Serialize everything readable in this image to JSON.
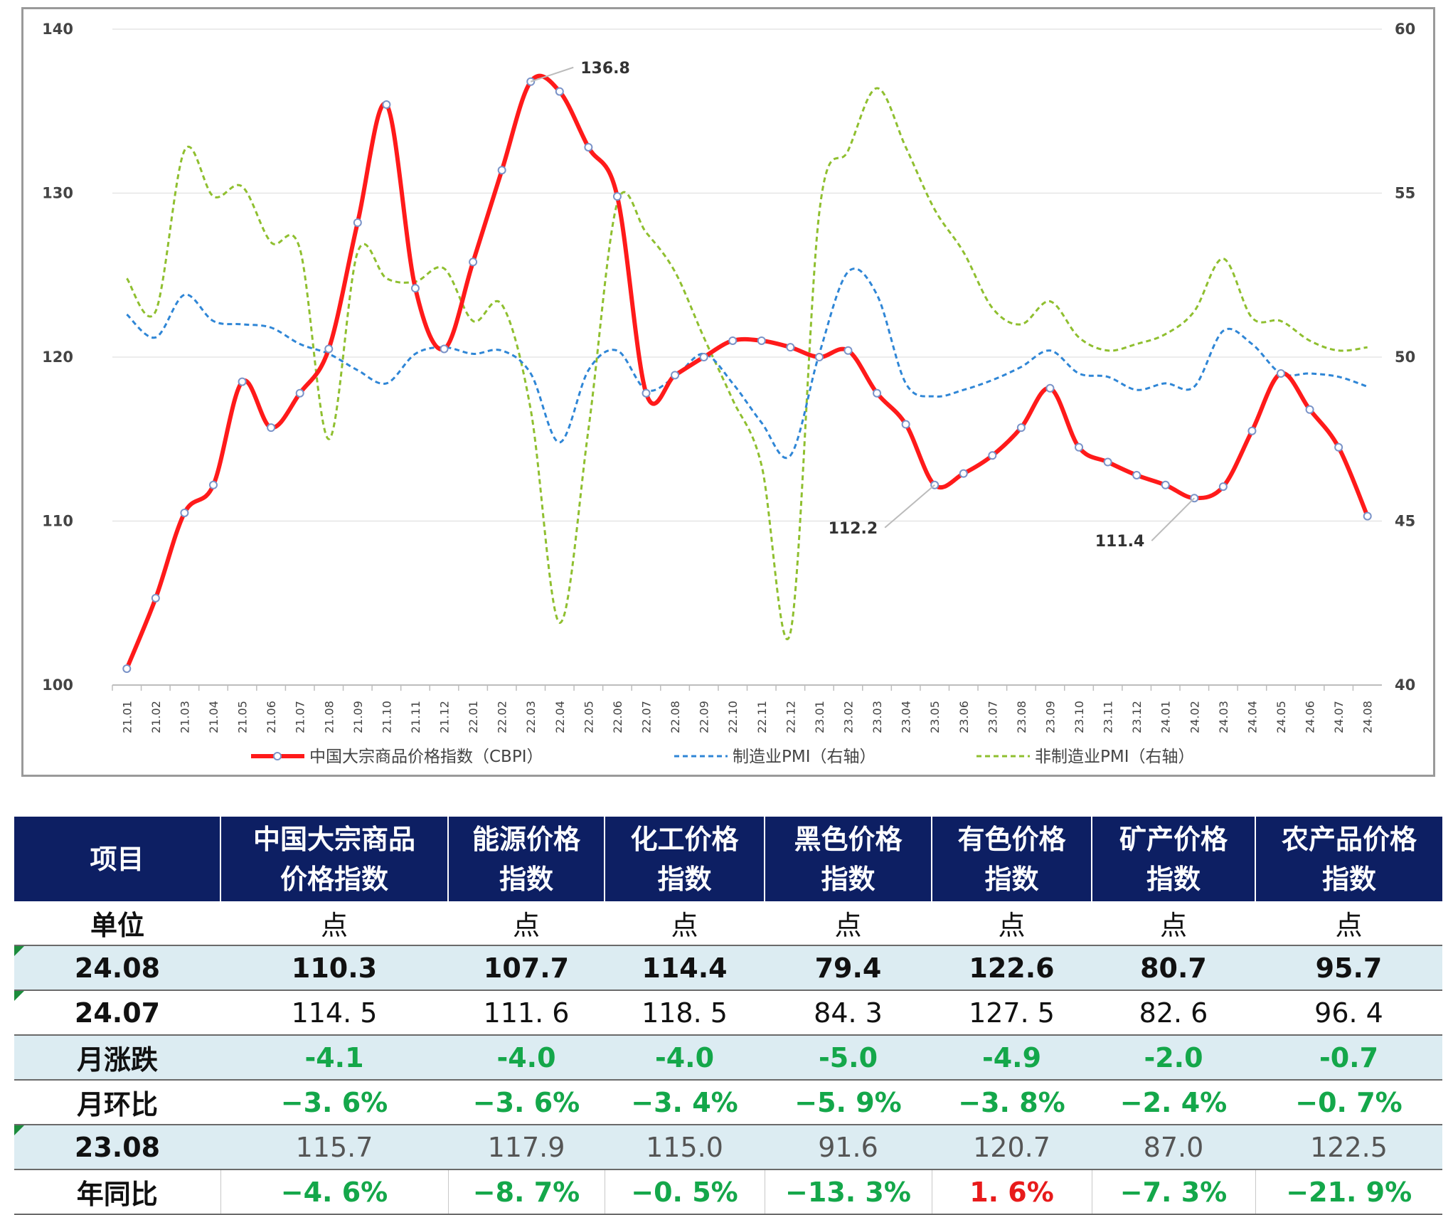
{
  "chart_data": {
    "type": "line",
    "x": [
      "21.01",
      "21.02",
      "21.03",
      "21.04",
      "21.05",
      "21.06",
      "21.07",
      "21.08",
      "21.09",
      "21.10",
      "21.11",
      "21.12",
      "22.01",
      "22.02",
      "22.03",
      "22.04",
      "22.05",
      "22.06",
      "22.07",
      "22.08",
      "22.09",
      "22.10",
      "22.11",
      "22.12",
      "23.01",
      "23.02",
      "23.03",
      "23.04",
      "23.05",
      "23.06",
      "23.07",
      "23.08",
      "23.09",
      "23.10",
      "23.11",
      "23.12",
      "24.01",
      "24.02",
      "24.03",
      "24.04",
      "24.05",
      "24.06",
      "24.07",
      "24.08"
    ],
    "left_axis": {
      "ylim": [
        100,
        140
      ],
      "ticks": [
        "100",
        "110",
        "120",
        "130",
        "140"
      ]
    },
    "right_axis": {
      "ylim": [
        40,
        60
      ],
      "ticks": [
        "40",
        "45",
        "50",
        "55",
        "60"
      ]
    },
    "series": [
      {
        "name": "中国大宗商品价格指数（CBPI）",
        "axis": "left",
        "style": "solid",
        "color": "#ff1a1a",
        "values": [
          101.0,
          105.3,
          110.5,
          112.2,
          118.5,
          115.7,
          117.8,
          120.5,
          128.2,
          135.4,
          124.2,
          120.5,
          125.8,
          131.4,
          136.8,
          136.2,
          132.8,
          129.8,
          117.8,
          118.9,
          120.0,
          121.0,
          121.0,
          120.6,
          120.0,
          120.4,
          117.8,
          115.9,
          112.2,
          112.9,
          114.0,
          115.7,
          118.1,
          114.5,
          113.6,
          112.8,
          112.2,
          111.4,
          112.1,
          115.5,
          119.0,
          116.8,
          114.5,
          110.3
        ]
      },
      {
        "name": "制造业PMI（右轴）",
        "axis": "right",
        "style": "dashed",
        "color": "#2f86d6",
        "values": [
          51.3,
          50.6,
          51.9,
          51.1,
          51.0,
          50.9,
          50.4,
          50.1,
          49.6,
          49.2,
          50.1,
          50.3,
          50.1,
          50.2,
          49.5,
          47.4,
          49.6,
          50.2,
          49.0,
          49.4,
          50.1,
          49.2,
          48.0,
          47.0,
          50.1,
          52.6,
          51.9,
          49.2,
          48.8,
          49.0,
          49.3,
          49.7,
          50.2,
          49.5,
          49.4,
          49.0,
          49.2,
          49.1,
          50.8,
          50.4,
          49.5,
          49.5,
          49.4,
          49.1
        ]
      },
      {
        "name": "非制造业PMI（右轴）",
        "axis": "right",
        "style": "dashed",
        "color": "#8fbf2f",
        "values": [
          52.4,
          51.4,
          56.3,
          54.9,
          55.2,
          53.5,
          53.3,
          47.5,
          53.2,
          52.4,
          52.3,
          52.7,
          51.1,
          51.6,
          48.4,
          41.9,
          47.8,
          54.7,
          53.8,
          52.6,
          50.6,
          48.7,
          46.7,
          41.6,
          54.4,
          56.3,
          58.2,
          56.4,
          54.5,
          53.2,
          51.5,
          51.0,
          51.7,
          50.6,
          50.2,
          50.4,
          50.7,
          51.4,
          53.0,
          51.2,
          51.1,
          50.5,
          50.2,
          50.3
        ]
      }
    ],
    "annotations": [
      {
        "text": "136.8",
        "x": "22.03"
      },
      {
        "text": "112.2",
        "x": "23.05"
      },
      {
        "text": "111.4",
        "x": "24.02"
      }
    ],
    "legend": "bottom",
    "grid": "horizontal"
  },
  "table": {
    "headers": [
      [
        "项目"
      ],
      [
        "中国大宗商品",
        "价格指数"
      ],
      [
        "能源价格",
        "指数"
      ],
      [
        "化工价格",
        "指数"
      ],
      [
        "黑色价格",
        "指数"
      ],
      [
        "有色价格",
        "指数"
      ],
      [
        "矿产价格",
        "指数"
      ],
      [
        "农产品价格",
        "指数"
      ]
    ],
    "unit_row": [
      "单位",
      "点",
      "点",
      "点",
      "点",
      "点",
      "点",
      "点"
    ],
    "rows": {
      "r2408": [
        "24.08",
        "110.3",
        "107.7",
        "114.4",
        "79.4",
        "122.6",
        "80.7",
        "95.7"
      ],
      "r2407": [
        "24.07",
        "114. 5",
        "111. 6",
        "118. 5",
        "84. 3",
        "127. 5",
        "82. 6",
        "96. 4"
      ],
      "change": [
        "月涨跌",
        "-4.1",
        "-4.0",
        "-4.0",
        "-5.0",
        "-4.9",
        "-2.0",
        "-0.7"
      ],
      "mom": [
        "月环比",
        "−3. 6%",
        "−3. 6%",
        "−3. 4%",
        "−5. 9%",
        "−3. 8%",
        "−2. 4%",
        "−0. 7%"
      ],
      "r2308": [
        "23.08",
        "115.7",
        "117.9",
        "115.0",
        "91.6",
        "120.7",
        "87.0",
        "122.5"
      ],
      "yoy": [
        "年同比",
        "−4. 6%",
        "−8. 7%",
        "−0. 5%",
        "−13. 3%",
        "1. 6%",
        "−7. 3%",
        "−21. 9%"
      ]
    },
    "colors": {
      "header_bg": "#0d1f63",
      "shade": "#dcecf2",
      "down": "#14a74a",
      "up": "#e81b1b"
    }
  }
}
